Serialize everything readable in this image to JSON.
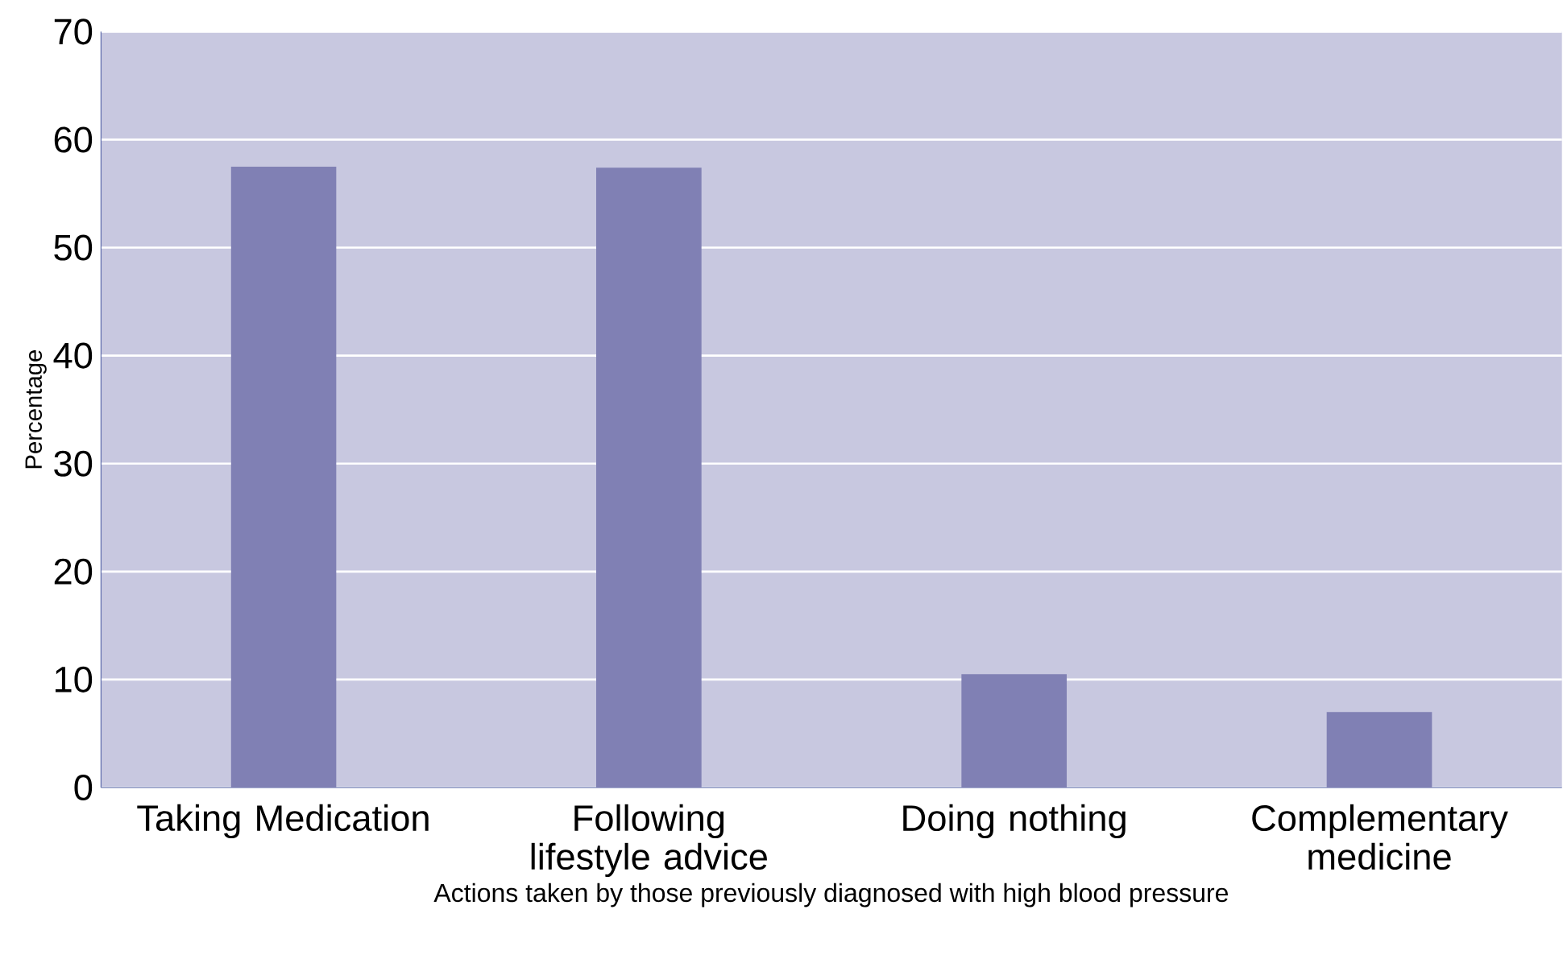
{
  "chart_data": {
    "type": "bar",
    "xlabel": "Actions taken by those previously diagnosed with high blood pressure",
    "ylabel": "Percentage",
    "categories": [
      "Taking Medication",
      "Following lifestyle advice",
      "Doing nothing",
      "Complementary medicine"
    ],
    "values": [
      57.5,
      57.4,
      10.5,
      7
    ],
    "color": "#8080b4",
    "ylim": [
      0,
      70
    ],
    "yticks": [
      0,
      10,
      20,
      30,
      40,
      50,
      60,
      70
    ],
    "grid": "y"
  }
}
